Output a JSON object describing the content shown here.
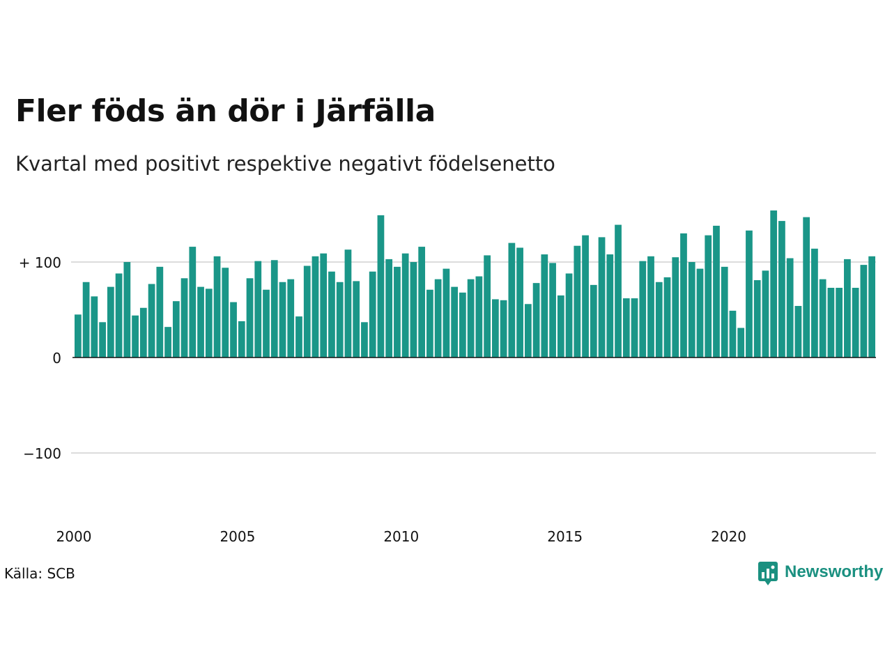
{
  "title": "Fler föds än dör i Järfälla",
  "subtitle": "Kvartal med positivt respektive negativt födelsenetto",
  "source": "Källa: SCB",
  "brand": {
    "name": "Newsworthy",
    "icon": "newsworthy-logo-icon",
    "color": "#1a9080"
  },
  "colors": {
    "bar": "#1a9688",
    "grid": "#dcdcdc",
    "axis": "#111111"
  },
  "chart_data": {
    "type": "bar",
    "title": "Fler föds än dör i Järfälla",
    "subtitle": "Kvartal med positivt respektive negativt födelsenetto",
    "x_start_year": 2000,
    "periods_per_year": 4,
    "x_tick_labels": [
      "2000",
      "2005",
      "2010",
      "2015",
      "2020"
    ],
    "y_ticks": [
      {
        "value": 100,
        "label": "+ 100"
      },
      {
        "value": 0,
        "label": "0"
      },
      {
        "value": -100,
        "label": "−100"
      }
    ],
    "ylim": [
      -170,
      155
    ],
    "grid": true,
    "series": [
      {
        "values": [
          45,
          79,
          64,
          37,
          74,
          88,
          100,
          44,
          52,
          77,
          95,
          32,
          59,
          83,
          116,
          74,
          72,
          106,
          94,
          58,
          38,
          83,
          101,
          71,
          102,
          79,
          82,
          43,
          96,
          106,
          109,
          90,
          79,
          113,
          80,
          37,
          90,
          149,
          103,
          95,
          109,
          100,
          116,
          71,
          82,
          93,
          74,
          68,
          82,
          85,
          107,
          61,
          60,
          120,
          115,
          56,
          78,
          108,
          99,
          65,
          88,
          117,
          128,
          76,
          126,
          108,
          139,
          62,
          62,
          101,
          106,
          79,
          84,
          105,
          130,
          100,
          93,
          128,
          138,
          95,
          49,
          31,
          133,
          81,
          91,
          154,
          143,
          104,
          54,
          147,
          114,
          82,
          73,
          73,
          103,
          73,
          97,
          106
        ]
      }
    ]
  }
}
